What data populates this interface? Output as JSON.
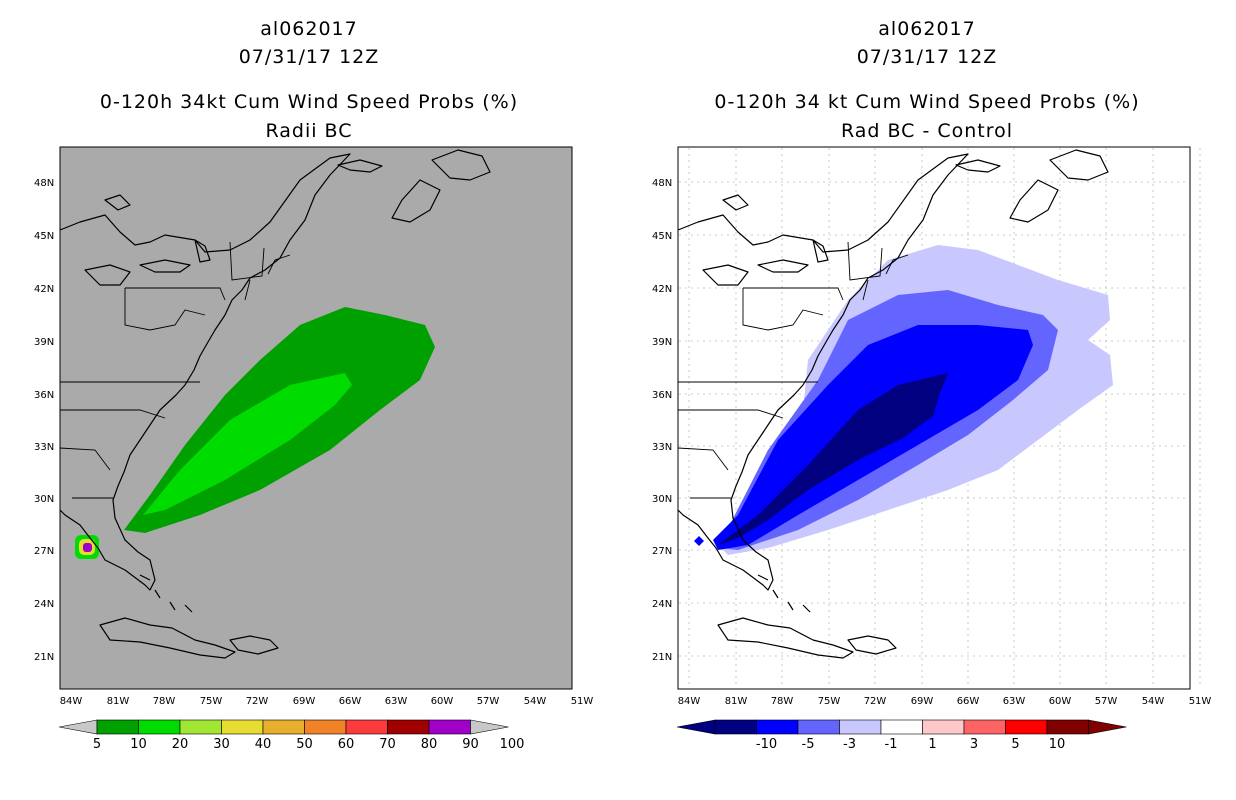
{
  "left_panel": {
    "storm_id": "al062017",
    "datetime": "07/31/17 12Z",
    "title": "0-120h 34kt Cum Wind Speed Probs (%)",
    "subtitle": "Radii BC",
    "background_color": "#aaaaaa",
    "legend": {
      "labels": [
        "5",
        "10",
        "20",
        "30",
        "40",
        "50",
        "60",
        "70",
        "80",
        "90",
        "100"
      ],
      "colors": [
        "#00a000",
        "#00dc00",
        "#a0e632",
        "#e6dc32",
        "#e6af2d",
        "#f08228",
        "#fa3c3c",
        "#a00000",
        "#a000c8"
      ]
    }
  },
  "right_panel": {
    "storm_id": "al062017",
    "datetime": "07/31/17 12Z",
    "title": "0-120h 34 kt Cum Wind Speed Probs (%)",
    "subtitle": "Rad BC - Control",
    "background_color": "#ffffff",
    "legend": {
      "labels": [
        "-10",
        "-5",
        "-3",
        "-1",
        "1",
        "3",
        "5",
        "10"
      ],
      "colors": [
        "#000080",
        "#0000ff",
        "#6464ff",
        "#c8c8ff",
        "#ffffff",
        "#ffc8c8",
        "#ff6464",
        "#ff0000",
        "#800000"
      ]
    }
  },
  "map": {
    "lat_labels": [
      "48N",
      "45N",
      "42N",
      "39N",
      "36N",
      "33N",
      "30N",
      "27N",
      "24N",
      "21N"
    ],
    "lon_labels": [
      "84W",
      "81W",
      "78W",
      "75W",
      "72W",
      "69W",
      "66W",
      "63W",
      "60W",
      "57W",
      "54W",
      "51W"
    ]
  }
}
